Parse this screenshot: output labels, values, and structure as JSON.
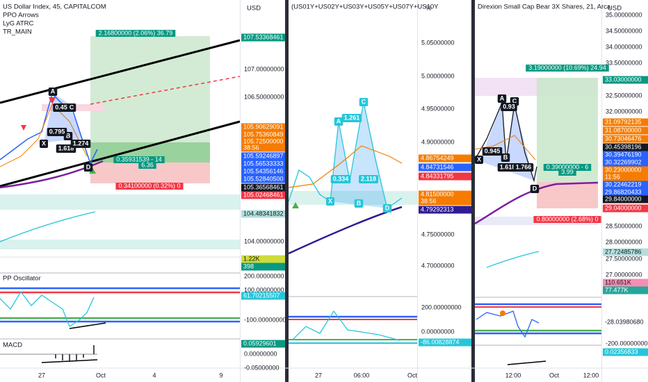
{
  "panels": [
    {
      "title": "US Dollar Index, 45, CAPITALCOM",
      "currency": "USD",
      "indicators": [
        "PPO Arrows",
        "LyG ATRC",
        "TR_MAIN"
      ],
      "sub_titles": [
        "PP Oscillator",
        "MACD"
      ],
      "axis_labels": [
        "107.00000000",
        "106.50000000",
        "104.00000000",
        "200.00000000",
        "100.00000000",
        "-100.00000000",
        "0.00000000",
        "-0.05000000"
      ],
      "badges": [
        {
          "text": "107.53368461",
          "color": "#089981"
        },
        {
          "text": "105.90629091",
          "color": "#f57c00"
        },
        {
          "text": "105.75360849",
          "color": "#f57c00"
        },
        {
          "text": "105.72500000",
          "color": "#f57c00"
        },
        {
          "text": "38:56",
          "color": "#f57c00"
        },
        {
          "text": "105.59246897",
          "color": "#2962ff"
        },
        {
          "text": "105.56533333",
          "color": "#2962ff"
        },
        {
          "text": "105.54356146",
          "color": "#2962ff"
        },
        {
          "text": "105.52840500",
          "color": "#2962ff"
        },
        {
          "text": "105.36568461",
          "color": "#131722"
        },
        {
          "text": "105.02468461",
          "color": "#f23645"
        },
        {
          "text": "104.48341832",
          "color": "#b2dfdb"
        },
        {
          "text": "1.22K",
          "color": "#cddc39"
        },
        {
          "text": "398",
          "color": "#089981"
        },
        {
          "text": "61.70215507",
          "color": "#26c6da"
        },
        {
          "text": "0.05929601",
          "color": "#089981"
        }
      ],
      "notes": [
        "2.16800000 (2.06%) 36.79",
        "0.35931539 - 14",
        "6.36",
        "0.34100000 (0.32%) 0"
      ],
      "pattern_labels": [
        "A",
        "C",
        "D",
        "X",
        "B",
        "0.45",
        "0.795",
        "1.618",
        "1.274"
      ],
      "time_labels": [
        "27",
        "Oct",
        "4",
        "9"
      ]
    },
    {
      "title": "(US01Y+US02Y+US03Y+US05Y+US07Y+US10Y",
      "currency": "%",
      "indicators": [],
      "sub_titles": [],
      "axis_labels": [
        "5.05000000",
        "5.00000000",
        "4.95000000",
        "4.90000000",
        "4.75000000",
        "4.70000000",
        "200.00000000",
        "0.00000000"
      ],
      "badges": [
        {
          "text": "4.86754249",
          "color": "#f57c00"
        },
        {
          "text": "4.84731546",
          "color": "#2962ff"
        },
        {
          "text": "4.84331795",
          "color": "#f23645"
        },
        {
          "text": "4.81500000",
          "color": "#f57c00"
        },
        {
          "text": "38:56",
          "color": "#f57c00"
        },
        {
          "text": "4.79292313",
          "color": "#311b92"
        },
        {
          "text": "-86.00828874",
          "color": "#26c6da"
        }
      ],
      "notes": [],
      "pattern_labels": [
        "1.261",
        "0.334",
        "2.118",
        "A",
        "C",
        "X",
        "B",
        "D"
      ],
      "time_labels": [
        "27",
        "06:00",
        "Oct"
      ]
    },
    {
      "title": "Direxion Small Cap Bear 3X Shares, 21, Arca",
      "currency": "USD",
      "indicators": [],
      "sub_titles": [],
      "axis_labels": [
        "35.00000000",
        "34.50000000",
        "34.00000000",
        "33.50000000",
        "32.50000000",
        "32.00000000",
        "28.50000000",
        "28.00000000",
        "27.50000000",
        "27.00000000",
        "-200.00000000"
      ],
      "badges": [
        {
          "text": "33.03000000",
          "color": "#089981"
        },
        {
          "text": "31.09792135",
          "color": "#f57c00"
        },
        {
          "text": "31.08700000",
          "color": "#f57c00"
        },
        {
          "text": "30.73046476",
          "color": "#f57c00"
        },
        {
          "text": "30.45398196",
          "color": "#131722"
        },
        {
          "text": "30.39476190",
          "color": "#2962ff"
        },
        {
          "text": "30.32269902",
          "color": "#2962ff"
        },
        {
          "text": "30.23000000",
          "color": "#f57c00"
        },
        {
          "text": "11:56",
          "color": "#f57c00"
        },
        {
          "text": "30.22462219",
          "color": "#2962ff"
        },
        {
          "text": "29.86820433",
          "color": "#2962ff"
        },
        {
          "text": "29.84000000",
          "color": "#131722"
        },
        {
          "text": "29.04000000",
          "color": "#f23645"
        },
        {
          "text": "27.72485786",
          "color": "#b2dfdb"
        },
        {
          "text": "110.651K",
          "color": "#f48fb1"
        },
        {
          "text": "77.477K",
          "color": "#26a69a"
        },
        {
          "text": "-28.03980680",
          "color": "#ffffff"
        },
        {
          "text": "0.02356833",
          "color": "#26c6da"
        }
      ],
      "notes": [
        "3.19000000 (10.69%) 24.94",
        "0.39000000 - 6",
        "3.99",
        "0.80000000 (2.68%) 0"
      ],
      "pattern_labels": [
        "A",
        "C",
        "0.93",
        "X",
        "B",
        "0.945",
        "1.618",
        "1.766",
        "D"
      ],
      "time_labels": [
        "12:00",
        "Oct",
        "12:00"
      ]
    }
  ]
}
